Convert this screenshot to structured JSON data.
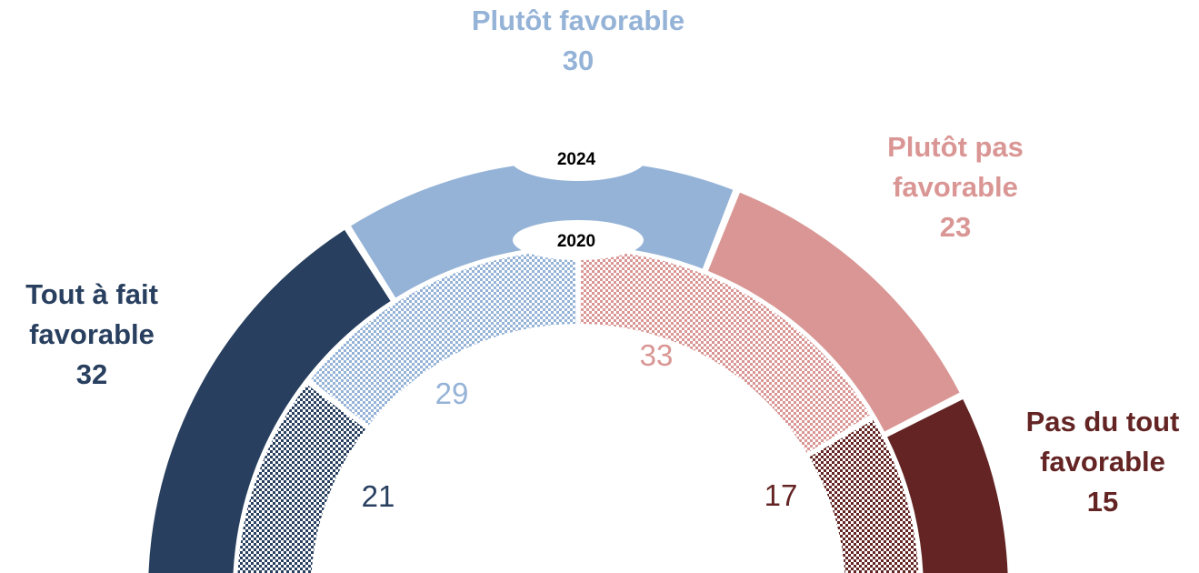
{
  "chart_data": {
    "type": "pie",
    "variant": "semi-donut",
    "categories": [
      "Tout à fait favorable",
      "Plutôt favorable",
      "Plutôt pas favorable",
      "Pas du tout favorable"
    ],
    "category_label_lines": [
      [
        "Tout à fait",
        "favorable"
      ],
      [
        "Plutôt favorable"
      ],
      [
        "Plutôt pas",
        "favorable"
      ],
      [
        "Pas du tout",
        "favorable"
      ]
    ],
    "colors": [
      "#283f5f",
      "#95b3d7",
      "#d99694",
      "#632423"
    ],
    "series": [
      {
        "name": "2024",
        "values": [
          32,
          30,
          23,
          15
        ],
        "ring": "outer",
        "fill": "solid"
      },
      {
        "name": "2020",
        "values": [
          21,
          29,
          33,
          17
        ],
        "ring": "inner",
        "fill": "pattern"
      }
    ]
  }
}
